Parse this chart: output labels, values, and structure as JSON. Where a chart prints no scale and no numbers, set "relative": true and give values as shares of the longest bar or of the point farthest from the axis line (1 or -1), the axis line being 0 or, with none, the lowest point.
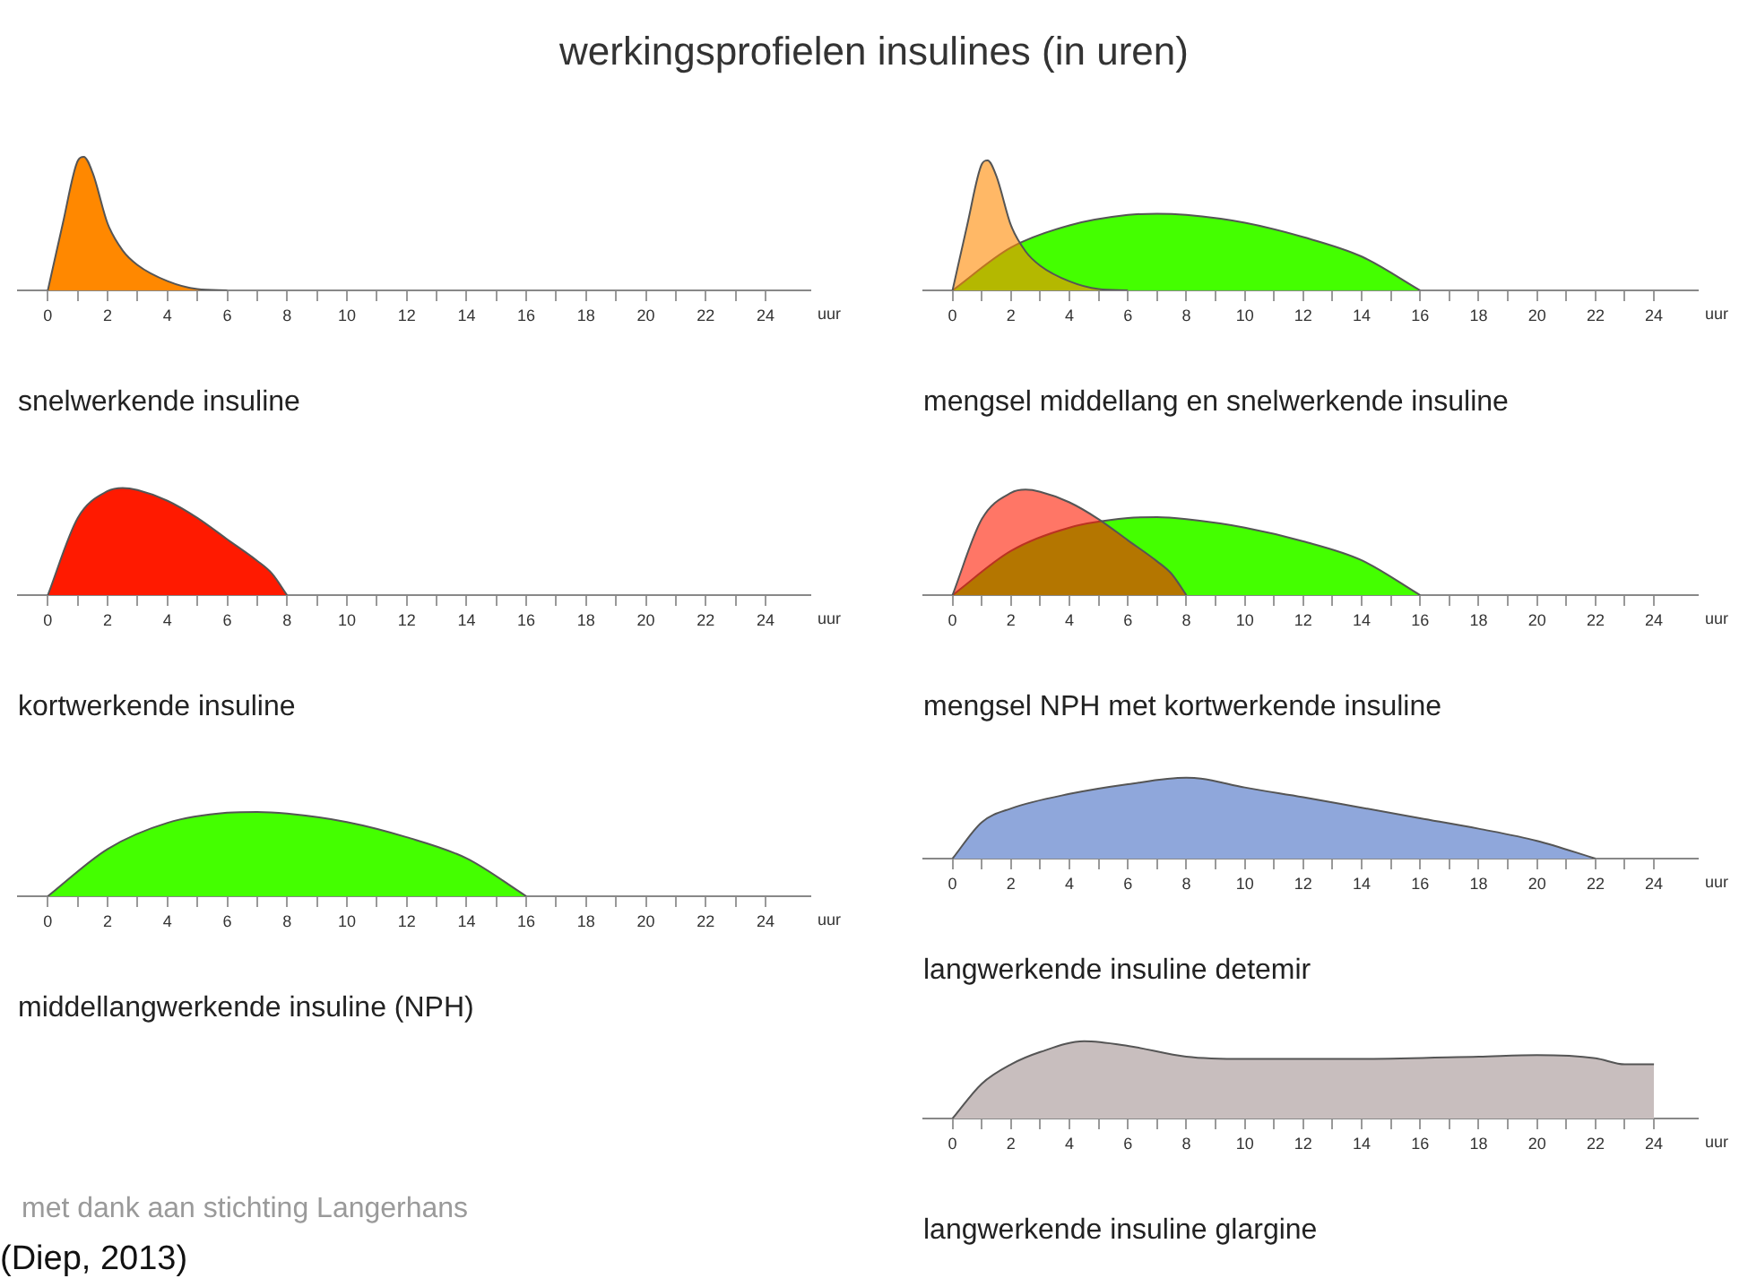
{
  "chart_data": [
    {
      "type": "other",
      "title": "werkingsprofielen insulines (in uren)"
    },
    {
      "type": "area",
      "relative": true,
      "title": "snelwerkende insuline",
      "xlabel": "uur",
      "xlim": [
        -1,
        25.5
      ],
      "xticks": [
        0,
        {
          "value": 1,
          "label": null
        },
        2,
        {
          "value": 3,
          "label": null
        },
        4,
        {
          "value": 5,
          "label": null
        },
        6,
        {
          "value": 7,
          "label": null
        },
        8,
        {
          "value": 9,
          "label": null
        },
        10,
        {
          "value": 11,
          "label": null
        },
        12,
        {
          "value": 13,
          "label": null
        },
        14,
        {
          "value": 15,
          "label": null
        },
        16,
        {
          "value": 17,
          "label": null
        },
        18,
        {
          "value": 19,
          "label": null
        },
        20,
        {
          "value": 21,
          "label": null
        },
        22,
        {
          "value": 23,
          "label": null
        },
        24
      ],
      "series": [
        {
          "color": "#ff8800",
          "x": [
            0,
            0.5,
            1,
            1.2,
            1.5,
            2,
            2.5,
            3,
            4,
            5,
            6
          ],
          "values": [
            0,
            0.5,
            0.97,
            1,
            0.88,
            0.5,
            0.3,
            0.19,
            0.07,
            0.01,
            0
          ]
        }
      ]
    },
    {
      "type": "area",
      "relative": true,
      "title": "mengsel middellang en snelwerkende insuline",
      "xlabel": "uur",
      "xlim": [
        -1,
        25.5
      ],
      "xticks": [
        0,
        {
          "value": 1,
          "label": null
        },
        2,
        {
          "value": 3,
          "label": null
        },
        4,
        {
          "value": 5,
          "label": null
        },
        6,
        {
          "value": 7,
          "label": null
        },
        8,
        {
          "value": 9,
          "label": null
        },
        10,
        {
          "value": 11,
          "label": null
        },
        12,
        {
          "value": 13,
          "label": null
        },
        14,
        {
          "value": 15,
          "label": null
        },
        16,
        {
          "value": 17,
          "label": null
        },
        18,
        {
          "value": 19,
          "label": null
        },
        20,
        {
          "value": 21,
          "label": null
        },
        22,
        {
          "value": 23,
          "label": null
        },
        24
      ],
      "series": [
        {
          "color": "#ff8800",
          "x": [
            0,
            0.5,
            1,
            1.2,
            1.5,
            2,
            2.5,
            3,
            4,
            5,
            6
          ],
          "values": [
            0,
            0.5,
            0.97,
            1,
            0.88,
            0.5,
            0.3,
            0.19,
            0.07,
            0.01,
            0
          ]
        },
        {
          "color": "#44ff00",
          "x": [
            0,
            2,
            4,
            6,
            7,
            8,
            10,
            12,
            14,
            16
          ],
          "values": [
            0,
            0.33,
            0.5,
            0.58,
            0.59,
            0.58,
            0.52,
            0.41,
            0.26,
            0
          ]
        }
      ]
    },
    {
      "type": "area",
      "relative": true,
      "title": "kortwerkende insuline",
      "xlabel": "uur",
      "xlim": [
        -1,
        25.5
      ],
      "xticks": [
        0,
        {
          "value": 1,
          "label": null
        },
        2,
        {
          "value": 3,
          "label": null
        },
        4,
        {
          "value": 5,
          "label": null
        },
        6,
        {
          "value": 7,
          "label": null
        },
        8,
        {
          "value": 9,
          "label": null
        },
        10,
        {
          "value": 11,
          "label": null
        },
        12,
        {
          "value": 13,
          "label": null
        },
        14,
        {
          "value": 15,
          "label": null
        },
        16,
        {
          "value": 17,
          "label": null
        },
        18,
        {
          "value": 19,
          "label": null
        },
        20,
        {
          "value": 21,
          "label": null
        },
        22,
        {
          "value": 23,
          "label": null
        },
        24
      ],
      "series": [
        {
          "color": "#ff1a00",
          "x": [
            0,
            1,
            2,
            2.5,
            3,
            4,
            5,
            6,
            7,
            7.5,
            8
          ],
          "values": [
            0,
            0.72,
            0.97,
            1,
            0.98,
            0.88,
            0.72,
            0.52,
            0.32,
            0.2,
            0
          ]
        }
      ]
    },
    {
      "type": "area",
      "relative": true,
      "title": "mengsel NPH met kortwerkende insuline",
      "xlabel": "uur",
      "xlim": [
        -1,
        25.5
      ],
      "xticks": [
        0,
        {
          "value": 1,
          "label": null
        },
        2,
        {
          "value": 3,
          "label": null
        },
        4,
        {
          "value": 5,
          "label": null
        },
        6,
        {
          "value": 7,
          "label": null
        },
        8,
        {
          "value": 9,
          "label": null
        },
        10,
        {
          "value": 11,
          "label": null
        },
        12,
        {
          "value": 13,
          "label": null
        },
        14,
        {
          "value": 15,
          "label": null
        },
        16,
        {
          "value": 17,
          "label": null
        },
        18,
        {
          "value": 19,
          "label": null
        },
        20,
        {
          "value": 21,
          "label": null
        },
        22,
        {
          "value": 23,
          "label": null
        },
        24
      ],
      "series": [
        {
          "color": "#ff1a00",
          "x": [
            0,
            1,
            2,
            2.5,
            3,
            4,
            5,
            6,
            7,
            7.5,
            8
          ],
          "values": [
            0,
            0.72,
            0.97,
            1,
            0.98,
            0.88,
            0.72,
            0.52,
            0.32,
            0.2,
            0
          ]
        },
        {
          "color": "#44ff00",
          "x": [
            0,
            2,
            4,
            6,
            7,
            8,
            10,
            12,
            14,
            16
          ],
          "values": [
            0,
            0.42,
            0.64,
            0.73,
            0.74,
            0.72,
            0.64,
            0.51,
            0.33,
            0
          ]
        }
      ]
    },
    {
      "type": "area",
      "relative": true,
      "title": "middellangwerkende insuline (NPH)",
      "xlabel": "uur",
      "xlim": [
        -1,
        25.5
      ],
      "xticks": [
        0,
        {
          "value": 1,
          "label": null
        },
        2,
        {
          "value": 3,
          "label": null
        },
        4,
        {
          "value": 5,
          "label": null
        },
        6,
        {
          "value": 7,
          "label": null
        },
        8,
        {
          "value": 9,
          "label": null
        },
        10,
        {
          "value": 11,
          "label": null
        },
        12,
        {
          "value": 13,
          "label": null
        },
        14,
        {
          "value": 15,
          "label": null
        },
        16,
        {
          "value": 17,
          "label": null
        },
        18,
        {
          "value": 19,
          "label": null
        },
        20,
        {
          "value": 21,
          "label": null
        },
        22,
        {
          "value": 23,
          "label": null
        },
        24
      ],
      "series": [
        {
          "color": "#44ff00",
          "x": [
            0,
            2,
            4,
            6,
            7,
            8,
            10,
            12,
            14,
            16
          ],
          "values": [
            0,
            0.56,
            0.87,
            0.99,
            1,
            0.98,
            0.88,
            0.7,
            0.45,
            0
          ]
        }
      ]
    },
    {
      "type": "area",
      "relative": true,
      "title": "langwerkende insuline detemir",
      "xlabel": "uur",
      "xlim": [
        -1,
        25.5
      ],
      "xticks": [
        0,
        {
          "value": 1,
          "label": null
        },
        2,
        {
          "value": 3,
          "label": null
        },
        4,
        {
          "value": 5,
          "label": null
        },
        6,
        {
          "value": 7,
          "label": null
        },
        8,
        {
          "value": 9,
          "label": null
        },
        10,
        {
          "value": 11,
          "label": null
        },
        12,
        {
          "value": 13,
          "label": null
        },
        14,
        {
          "value": 15,
          "label": null
        },
        16,
        {
          "value": 17,
          "label": null
        },
        18,
        {
          "value": 19,
          "label": null
        },
        20,
        {
          "value": 21,
          "label": null
        },
        22,
        {
          "value": 23,
          "label": null
        },
        24
      ],
      "series": [
        {
          "color": "#8fa7db",
          "x": [
            0,
            1,
            2,
            4,
            6,
            8,
            8.5,
            10,
            12,
            14,
            16,
            18,
            20,
            22
          ],
          "values": [
            0,
            0.45,
            0.62,
            0.8,
            0.92,
            1,
            0.99,
            0.88,
            0.76,
            0.63,
            0.5,
            0.37,
            0.22,
            0
          ]
        }
      ]
    },
    {
      "type": "area",
      "relative": true,
      "title": "langwerkende insuline glargine",
      "xlabel": "uur",
      "xlim": [
        -1,
        25.5
      ],
      "xticks": [
        0,
        {
          "value": 1,
          "label": null
        },
        2,
        {
          "value": 3,
          "label": null
        },
        4,
        {
          "value": 5,
          "label": null
        },
        6,
        {
          "value": 7,
          "label": null
        },
        8,
        {
          "value": 9,
          "label": null
        },
        10,
        {
          "value": 11,
          "label": null
        },
        12,
        {
          "value": 13,
          "label": null
        },
        14,
        {
          "value": 15,
          "label": null
        },
        16,
        {
          "value": 17,
          "label": null
        },
        18,
        {
          "value": 19,
          "label": null
        },
        20,
        {
          "value": 21,
          "label": null
        },
        22,
        {
          "value": 23,
          "label": null
        },
        24
      ],
      "series": [
        {
          "color": "#c8bebe",
          "x": [
            0,
            1,
            2,
            3,
            4.5,
            6,
            8,
            10,
            14,
            18,
            20,
            22,
            23,
            24
          ],
          "values": [
            0,
            0.45,
            0.7,
            0.86,
            1,
            0.94,
            0.8,
            0.77,
            0.77,
            0.8,
            0.82,
            0.78,
            0.7,
            0.7
          ]
        }
      ]
    },
    {
      "type": "other",
      "annotations": [
        "met dank aan stichting Langerhans",
        "(Diep, 2013)"
      ]
    }
  ]
}
